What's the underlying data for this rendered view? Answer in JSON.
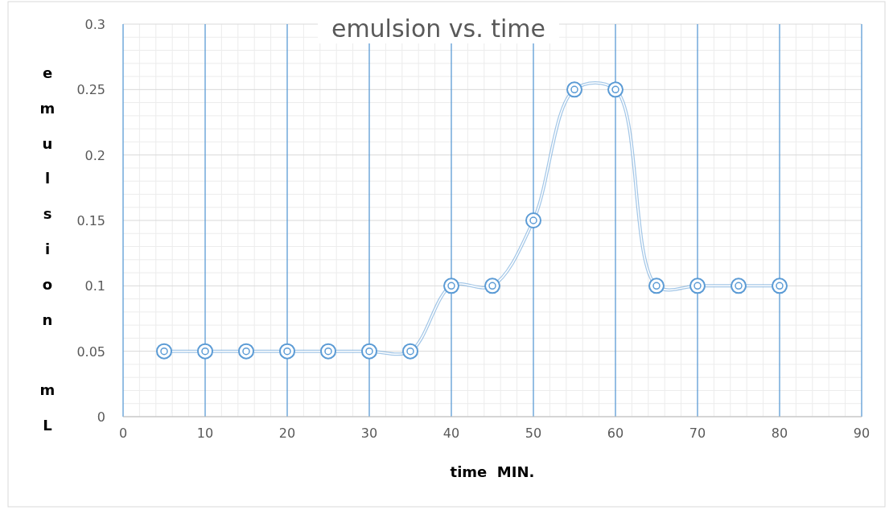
{
  "chart_data": {
    "type": "line",
    "title": "emulsion vs. time",
    "xlabel": "time  MIN.",
    "ylabel": "emulsion mL",
    "x": [
      5,
      10,
      15,
      20,
      25,
      30,
      35,
      40,
      45,
      50,
      55,
      60,
      65,
      70,
      75,
      80
    ],
    "series": [
      {
        "color": "#5b9bd5",
        "values": [
          0.05,
          0.05,
          0.05,
          0.05,
          0.05,
          0.05,
          0.05,
          0.1,
          0.1,
          0.15,
          0.25,
          0.25,
          0.1,
          0.1,
          0.1,
          0.1
        ]
      }
    ],
    "xlim": [
      0,
      90
    ],
    "xticks": [
      0,
      10,
      20,
      30,
      40,
      50,
      60,
      70,
      80,
      90
    ],
    "ylim": [
      0,
      0.3
    ],
    "yticks": [
      0,
      0.05,
      0.1,
      0.15,
      0.2,
      0.25,
      0.3
    ],
    "grid": true,
    "marker": "circle",
    "line_style": "solid"
  }
}
